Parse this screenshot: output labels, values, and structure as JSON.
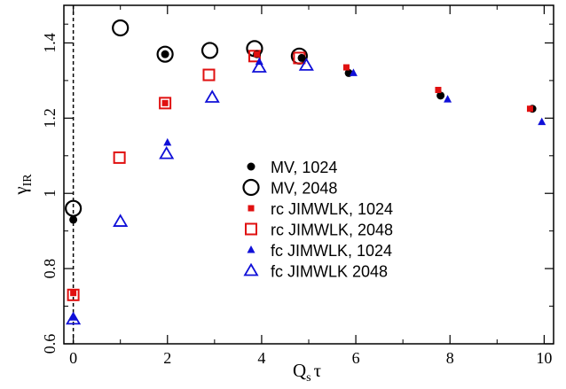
{
  "chart_data": {
    "type": "scatter",
    "title": "",
    "xlabel": {
      "main": "Q",
      "sub": "s",
      "tail": "τ"
    },
    "ylabel": {
      "main": "γ",
      "sub": "IR"
    },
    "xlim": [
      -0.2,
      10.2
    ],
    "ylim": [
      0.6,
      1.5
    ],
    "xticks": [
      0,
      2,
      4,
      6,
      8,
      10
    ],
    "yticks": [
      0.6,
      0.8,
      1.0,
      1.2,
      1.4
    ],
    "xtick_labels": [
      "0",
      "2",
      "4",
      "6",
      "8",
      "10"
    ],
    "ytick_labels": [
      "0.6",
      "0.8",
      "1",
      "1.2",
      "1.4"
    ],
    "grid": false,
    "vertical_line": {
      "x": 0,
      "style": "dashed"
    },
    "legend_position": "center-right",
    "series": [
      {
        "name": "MV, 1024",
        "marker": "circle-filled",
        "color": "#000000",
        "x": [
          0,
          1.95,
          3.9,
          4.85,
          5.85,
          7.8,
          9.75
        ],
        "y": [
          0.93,
          1.37,
          1.37,
          1.36,
          1.32,
          1.26,
          1.225
        ]
      },
      {
        "name": "MV, 2048",
        "marker": "circle-open",
        "color": "#000000",
        "x": [
          0,
          1,
          1.95,
          2.9,
          3.85,
          4.8
        ],
        "y": [
          0.96,
          1.44,
          1.37,
          1.38,
          1.385,
          1.365
        ]
      },
      {
        "name": "rc JIMWLK, 1024",
        "marker": "square-filled",
        "color": "#e01010",
        "x": [
          0,
          1.95,
          3.9,
          5.8,
          7.75,
          9.7
        ],
        "y": [
          0.735,
          1.24,
          1.37,
          1.335,
          1.275,
          1.225
        ]
      },
      {
        "name": "rc JIMWLK, 2048",
        "marker": "square-open",
        "color": "#e01010",
        "x": [
          0,
          0.98,
          1.95,
          2.88,
          3.85,
          4.8
        ],
        "y": [
          0.73,
          1.095,
          1.24,
          1.315,
          1.365,
          1.36
        ]
      },
      {
        "name": "fc JIMWLK, 1024",
        "marker": "triangle-filled",
        "color": "#1010d8",
        "x": [
          0,
          2,
          3.95,
          5.95,
          7.95,
          9.95
        ],
        "y": [
          0.67,
          1.135,
          1.35,
          1.32,
          1.25,
          1.19
        ]
      },
      {
        "name": "fc JIMWLK 2048",
        "marker": "triangle-open",
        "color": "#1010d8",
        "x": [
          0,
          1,
          1.98,
          2.95,
          3.95,
          4.95
        ],
        "y": [
          0.665,
          0.925,
          1.105,
          1.255,
          1.335,
          1.34
        ]
      }
    ]
  }
}
